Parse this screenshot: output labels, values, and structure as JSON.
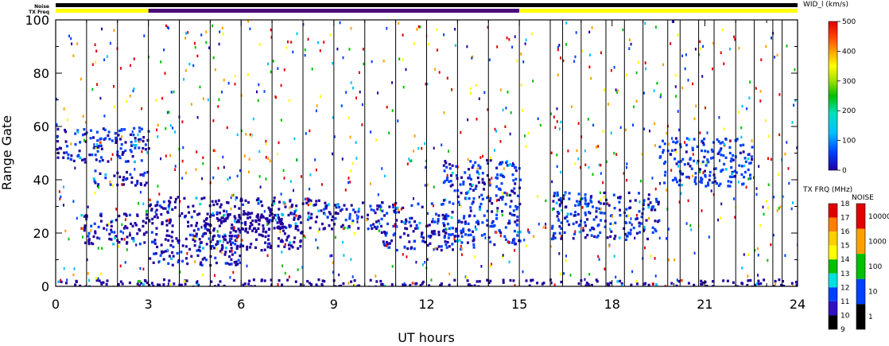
{
  "chart_data": {
    "type": "heatmap",
    "xlabel": "UT hours",
    "ylabel": "Range Gate",
    "xlim": [
      0,
      24
    ],
    "ylim": [
      0,
      100
    ],
    "x_ticks": [
      0,
      3,
      6,
      9,
      12,
      15,
      18,
      21,
      24
    ],
    "y_ticks": [
      0,
      20,
      40,
      60,
      80,
      100
    ],
    "scan_boundaries_ut": [
      1.0,
      2.0,
      3.0,
      4.0,
      5.0,
      6.0,
      7.0,
      8.0,
      9.0,
      10.0,
      11.0,
      12.0,
      13.0,
      14.0,
      15.0,
      16.0,
      16.4,
      17.0,
      17.8,
      18.4,
      19.0,
      19.8,
      20.2,
      20.8,
      21.3,
      22.0,
      22.6,
      23.2,
      23.5
    ],
    "status_bars": {
      "noise_label": "Noise",
      "txfreq_label": "TX Freq",
      "noise_color": "#000000",
      "txfreq_segments": [
        {
          "start": 0,
          "end": 3,
          "color": "#ffff00"
        },
        {
          "start": 3,
          "end": 15,
          "color": "#4b0a7a"
        },
        {
          "start": 15,
          "end": 24,
          "color": "#ffff00"
        }
      ]
    },
    "echo_regions": [
      {
        "t0": 0.0,
        "t1": 3.0,
        "g0": 47,
        "g1": 60,
        "value": 60
      },
      {
        "t0": 1.2,
        "t1": 3.0,
        "g0": 38,
        "g1": 44,
        "value": 50
      },
      {
        "t0": 0.8,
        "t1": 3.0,
        "g0": 16,
        "g1": 28,
        "value": 40
      },
      {
        "t0": 3.0,
        "t1": 8.5,
        "g0": 22,
        "g1": 34,
        "value": 35
      },
      {
        "t0": 4.5,
        "t1": 8.0,
        "g0": 14,
        "g1": 28,
        "value": 25
      },
      {
        "t0": 3.0,
        "t1": 6.0,
        "g0": 8,
        "g1": 22,
        "value": 45
      },
      {
        "t0": 8.5,
        "t1": 12.5,
        "g0": 22,
        "g1": 32,
        "value": 55
      },
      {
        "t0": 10.5,
        "t1": 13.5,
        "g0": 14,
        "g1": 22,
        "value": 50
      },
      {
        "t0": 12.5,
        "t1": 15.0,
        "g0": 16,
        "g1": 48,
        "value": 70
      },
      {
        "t0": 16.0,
        "t1": 19.5,
        "g0": 18,
        "g1": 36,
        "value": 65
      },
      {
        "t0": 19.5,
        "t1": 22.5,
        "g0": 38,
        "g1": 56,
        "value": 80
      },
      {
        "t0": 0.0,
        "t1": 24.0,
        "g0": 0,
        "g1": 3,
        "value": 30
      }
    ],
    "colorbars": {
      "width": {
        "title": "WID_l (km/s)",
        "ticks": [
          "500",
          "400",
          "300",
          "200",
          "100",
          "0"
        ],
        "min": 0,
        "max": 500
      },
      "txfreq": {
        "title": "TX FRQ (MHz)",
        "ticks": [
          "18",
          "17",
          "16",
          "15",
          "14",
          "13",
          "12",
          "11",
          "10",
          "9"
        ]
      },
      "noise": {
        "title": "NOISE",
        "ticks": [
          "10000",
          "1000",
          "100",
          "10",
          "1"
        ]
      }
    }
  }
}
